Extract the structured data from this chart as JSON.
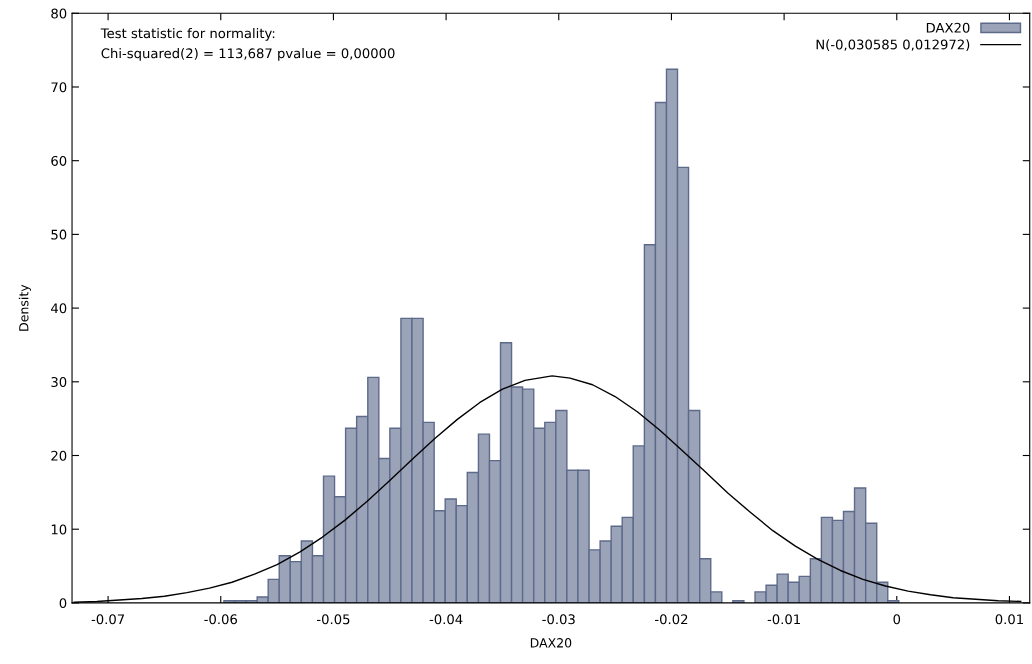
{
  "chart_data": {
    "type": "histogram",
    "xlabel": "DAX20",
    "ylabel": "Density",
    "annotations": [
      "Test statistic for normality:",
      "Chi-squared(2) = 113,687 pvalue = 0,00000"
    ],
    "xlim": [
      -0.0732,
      0.0118
    ],
    "ylim": [
      0,
      80
    ],
    "xticks": [
      -0.07,
      -0.06,
      -0.05,
      -0.04,
      -0.03,
      -0.02,
      -0.01,
      0,
      0.01
    ],
    "yticks": [
      0,
      10,
      20,
      30,
      40,
      50,
      60,
      70,
      80
    ],
    "grid": false,
    "legend": "top right",
    "series": [
      {
        "name": "DAX20",
        "color": "#9ba3b8",
        "bins": [
          -0.05972,
          -0.05874,
          -0.05776,
          -0.05677,
          -0.05579,
          -0.05481,
          -0.05383,
          -0.05285,
          -0.05186,
          -0.05088,
          -0.0499,
          -0.04892,
          -0.04794,
          -0.04695,
          -0.04597,
          -0.04499,
          -0.04401,
          -0.04303,
          -0.04204,
          -0.04106,
          -0.04008,
          -0.0391,
          -0.03812,
          -0.03713,
          -0.03615,
          -0.03517,
          -0.03419,
          -0.03321,
          -0.03222,
          -0.03124,
          -0.03026,
          -0.02928,
          -0.0283,
          -0.02731,
          -0.02633,
          -0.02535,
          -0.02437,
          -0.02339,
          -0.0224,
          -0.02142,
          -0.02044,
          -0.01946,
          -0.01848,
          -0.01749,
          -0.01651,
          -0.01553,
          -0.01455,
          -0.01357,
          -0.01258,
          -0.0116,
          -0.01062,
          -0.00964,
          -0.00866,
          -0.00767,
          -0.00669,
          -0.00571,
          -0.00473,
          -0.00375,
          -0.00276,
          -0.00178,
          -0.0008,
          0.00018
        ],
        "values": [
          0.3,
          0.3,
          0.3,
          0.8,
          3.2,
          6.4,
          5.6,
          8.4,
          6.4,
          17.2,
          14.4,
          23.7,
          25.3,
          30.6,
          19.6,
          23.7,
          38.6,
          38.6,
          24.5,
          12.5,
          14.1,
          13.2,
          17.7,
          22.9,
          19.3,
          35.3,
          29.3,
          29.0,
          23.7,
          24.5,
          26.1,
          18.0,
          18.0,
          7.2,
          8.4,
          10.4,
          11.6,
          21.3,
          48.6,
          67.9,
          72.4,
          59.1,
          26.1,
          6.0,
          1.5,
          0,
          0.3,
          0,
          1.5,
          2.4,
          3.9,
          2.8,
          3.6,
          6.0,
          11.6,
          11.2,
          12.4,
          15.6,
          10.8,
          2.8,
          0.3
        ]
      },
      {
        "name": "N(-0,030585 0,012972)",
        "type": "line",
        "color": "#000000",
        "x": [
          -0.073,
          -0.071,
          -0.069,
          -0.067,
          -0.065,
          -0.063,
          -0.061,
          -0.059,
          -0.057,
          -0.055,
          -0.053,
          -0.051,
          -0.049,
          -0.047,
          -0.045,
          -0.043,
          -0.041,
          -0.039,
          -0.037,
          -0.035,
          -0.033,
          -0.031,
          -0.030585,
          -0.029,
          -0.027,
          -0.025,
          -0.023,
          -0.021,
          -0.019,
          -0.017,
          -0.015,
          -0.013,
          -0.011,
          -0.009,
          -0.007,
          -0.005,
          -0.003,
          -0.001,
          0.001,
          0.003,
          0.005,
          0.007,
          0.009,
          0.011
        ],
        "values": [
          0.1,
          0.2,
          0.4,
          0.6,
          0.9,
          1.4,
          2.0,
          2.8,
          3.9,
          5.2,
          6.9,
          8.9,
          11.2,
          13.8,
          16.6,
          19.5,
          22.3,
          24.9,
          27.2,
          29.0,
          30.2,
          30.7,
          30.8,
          30.5,
          29.6,
          28.0,
          25.9,
          23.4,
          20.6,
          17.8,
          14.9,
          12.3,
          9.8,
          7.7,
          5.9,
          4.4,
          3.2,
          2.3,
          1.6,
          1.1,
          0.7,
          0.5,
          0.3,
          0.2
        ]
      }
    ]
  }
}
